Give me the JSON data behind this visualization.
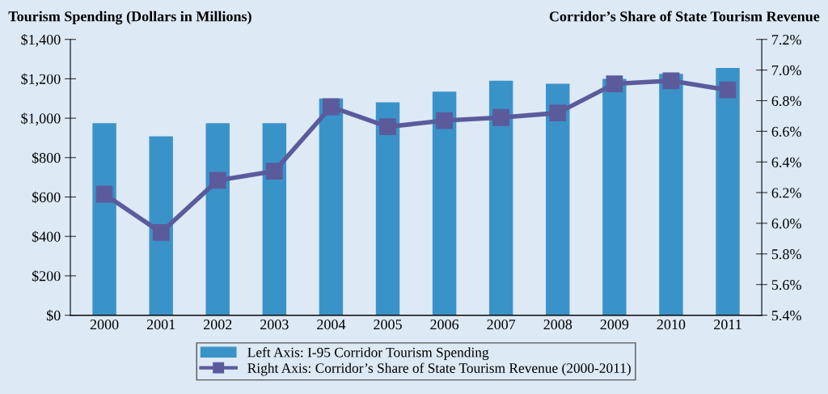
{
  "chart_data": {
    "type": "bar",
    "ylabel": "Tourism Spending (Dollars in Millions)",
    "y2label": "Corridor’s Share of State Tourism Revenue",
    "categories": [
      "2000",
      "2001",
      "2002",
      "2003",
      "2004",
      "2005",
      "2006",
      "2007",
      "2008",
      "2009",
      "2010",
      "2011"
    ],
    "series": [
      {
        "name": "Left Axis: I-95 Corridor Tourism Spending",
        "color": "#3a93c8",
        "values": [
          975,
          908,
          975,
          975,
          1100,
          1080,
          1135,
          1190,
          1175,
          1200,
          1225,
          1255
        ]
      },
      {
        "name": "Right Axis: Corridor’s Share of State Tourism Revenue (2000-2011)",
        "type": "line",
        "axis": "y2",
        "color": "#5b5b9c",
        "marker": "square",
        "values": [
          6.19,
          5.94,
          6.28,
          6.34,
          6.76,
          6.63,
          6.67,
          6.69,
          6.72,
          6.91,
          6.93,
          6.87
        ]
      }
    ],
    "ylim": [
      0,
      1400
    ],
    "yticks": [
      {
        "value": 0,
        "label": "$0"
      },
      {
        "value": 200,
        "label": "$200"
      },
      {
        "value": 400,
        "label": "$400"
      },
      {
        "value": 600,
        "label": "$600"
      },
      {
        "value": 800,
        "label": "$800"
      },
      {
        "value": 1000,
        "label": "$1,000"
      },
      {
        "value": 1200,
        "label": "$1,200"
      },
      {
        "value": 1400,
        "label": "$1,400"
      }
    ],
    "y2lim": [
      5.4,
      7.2
    ],
    "y2ticks": [
      {
        "value": 5.4,
        "label": "5.4%"
      },
      {
        "value": 5.6,
        "label": "5.6%"
      },
      {
        "value": 5.8,
        "label": "5.8%"
      },
      {
        "value": 6.0,
        "label": "6.0%"
      },
      {
        "value": 6.2,
        "label": "6.2%"
      },
      {
        "value": 6.4,
        "label": "6.4%"
      },
      {
        "value": 6.6,
        "label": "6.6%"
      },
      {
        "value": 6.8,
        "label": "6.8%"
      },
      {
        "value": 7.0,
        "label": "7.0%"
      },
      {
        "value": 7.2,
        "label": "7.2%"
      }
    ],
    "grid": false,
    "legend": "bottom"
  }
}
